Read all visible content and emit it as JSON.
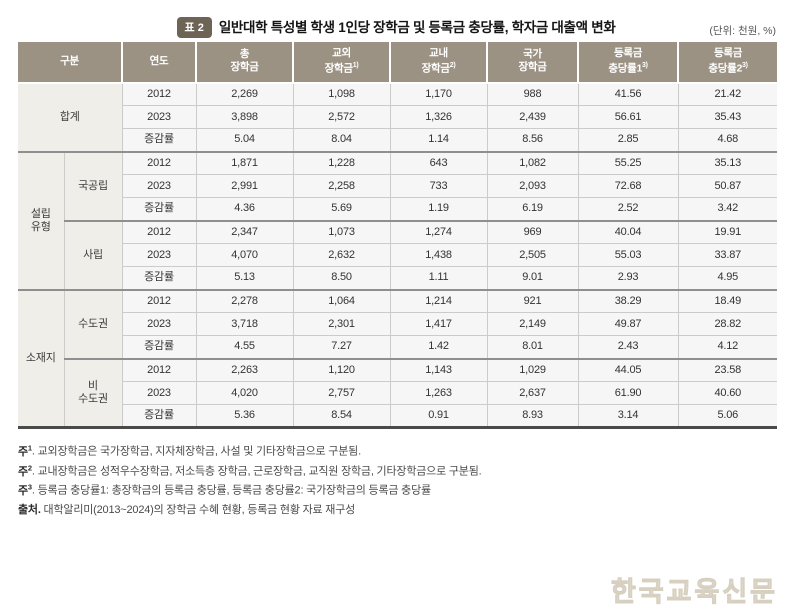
{
  "title": {
    "badge": "표 2",
    "text": "일반대학 특성별 학생 1인당 장학금 및 등록금 충당률, 학자금 대출액 변화",
    "unit": "(단위: 천원, %)"
  },
  "table": {
    "headers": [
      {
        "lines": [
          "구분"
        ],
        "sup": ""
      },
      {
        "lines": [
          "연도"
        ],
        "sup": ""
      },
      {
        "lines": [
          "총",
          "장학금"
        ],
        "sup": ""
      },
      {
        "lines": [
          "교외",
          "장학금"
        ],
        "sup": "1)"
      },
      {
        "lines": [
          "교내",
          "장학금"
        ],
        "sup": "2)"
      },
      {
        "lines": [
          "국가",
          "장학금"
        ],
        "sup": ""
      },
      {
        "lines": [
          "등록금",
          "충당률1"
        ],
        "sup": "3)"
      },
      {
        "lines": [
          "등록금",
          "충당률2"
        ],
        "sup": "3)"
      }
    ],
    "groups": [
      {
        "label_lines": [
          "합계"
        ],
        "has_sub": false,
        "subgroups": [
          {
            "label_lines": [],
            "rows": [
              {
                "label": "2012",
                "values": [
                  "2,269",
                  "1,098",
                  "1,170",
                  "988",
                  "41.56",
                  "21.42"
                ]
              },
              {
                "label": "2023",
                "values": [
                  "3,898",
                  "2,572",
                  "1,326",
                  "2,439",
                  "56.61",
                  "35.43"
                ]
              },
              {
                "label": "증감률",
                "values": [
                  "5.04",
                  "8.04",
                  "1.14",
                  "8.56",
                  "2.85",
                  "4.68"
                ]
              }
            ]
          }
        ]
      },
      {
        "label_lines": [
          "설립",
          "유형"
        ],
        "has_sub": true,
        "subgroups": [
          {
            "label_lines": [
              "국공립"
            ],
            "rows": [
              {
                "label": "2012",
                "values": [
                  "1,871",
                  "1,228",
                  "643",
                  "1,082",
                  "55.25",
                  "35.13"
                ]
              },
              {
                "label": "2023",
                "values": [
                  "2,991",
                  "2,258",
                  "733",
                  "2,093",
                  "72.68",
                  "50.87"
                ]
              },
              {
                "label": "증감률",
                "values": [
                  "4.36",
                  "5.69",
                  "1.19",
                  "6.19",
                  "2.52",
                  "3.42"
                ]
              }
            ]
          },
          {
            "label_lines": [
              "사립"
            ],
            "rows": [
              {
                "label": "2012",
                "values": [
                  "2,347",
                  "1,073",
                  "1,274",
                  "969",
                  "40.04",
                  "19.91"
                ]
              },
              {
                "label": "2023",
                "values": [
                  "4,070",
                  "2,632",
                  "1,438",
                  "2,505",
                  "55.03",
                  "33.87"
                ]
              },
              {
                "label": "증감률",
                "values": [
                  "5.13",
                  "8.50",
                  "1.11",
                  "9.01",
                  "2.93",
                  "4.95"
                ]
              }
            ]
          }
        ]
      },
      {
        "label_lines": [
          "소재지"
        ],
        "has_sub": true,
        "subgroups": [
          {
            "label_lines": [
              "수도권"
            ],
            "rows": [
              {
                "label": "2012",
                "values": [
                  "2,278",
                  "1,064",
                  "1,214",
                  "921",
                  "38.29",
                  "18.49"
                ]
              },
              {
                "label": "2023",
                "values": [
                  "3,718",
                  "2,301",
                  "1,417",
                  "2,149",
                  "49.87",
                  "28.82"
                ]
              },
              {
                "label": "증감률",
                "values": [
                  "4.55",
                  "7.27",
                  "1.42",
                  "8.01",
                  "2.43",
                  "4.12"
                ]
              }
            ]
          },
          {
            "label_lines": [
              "비",
              "수도권"
            ],
            "rows": [
              {
                "label": "2012",
                "values": [
                  "2,263",
                  "1,120",
                  "1,143",
                  "1,029",
                  "44.05",
                  "23.58"
                ]
              },
              {
                "label": "2023",
                "values": [
                  "4,020",
                  "2,757",
                  "1,263",
                  "2,637",
                  "61.90",
                  "40.60"
                ]
              },
              {
                "label": "증감률",
                "values": [
                  "5.36",
                  "8.54",
                  "0.91",
                  "8.93",
                  "3.14",
                  "5.06"
                ]
              }
            ]
          }
        ]
      }
    ]
  },
  "footnotes": [
    {
      "prefix": "주",
      "sup": "1",
      "body": ". 교외장학금은 국가장학금, 지자체장학금, 사설 및 기타장학금으로 구분됨."
    },
    {
      "prefix": "주",
      "sup": "2",
      "body": ". 교내장학금은 성적우수장학금, 저소득층 장학금, 근로장학금, 교직원 장학금, 기타장학금으로 구분됨."
    },
    {
      "prefix": "주",
      "sup": "3",
      "body": ". 등록금 충당률1: 총장학금의 등록금 충당률, 등록금 충당률2: 국가장학금의 등록금 충당률"
    },
    {
      "prefix": "출처.",
      "sup": "",
      "body": " 대학알리미(2013~2024)의 장학금 수혜 현황, 등록금 현황 자료 재구성"
    }
  ],
  "watermark": "한국교육신문",
  "colors": {
    "header_bg": "#9b9284",
    "badge_bg": "#6e6455",
    "group_col_bg": "#f0eee9",
    "cell_bg": "#f6f6f7",
    "border_light": "#cbcbc9",
    "border_section": "#8f8f8f",
    "border_bottom": "#4a4a4a",
    "watermark": "#d7d0c1"
  }
}
